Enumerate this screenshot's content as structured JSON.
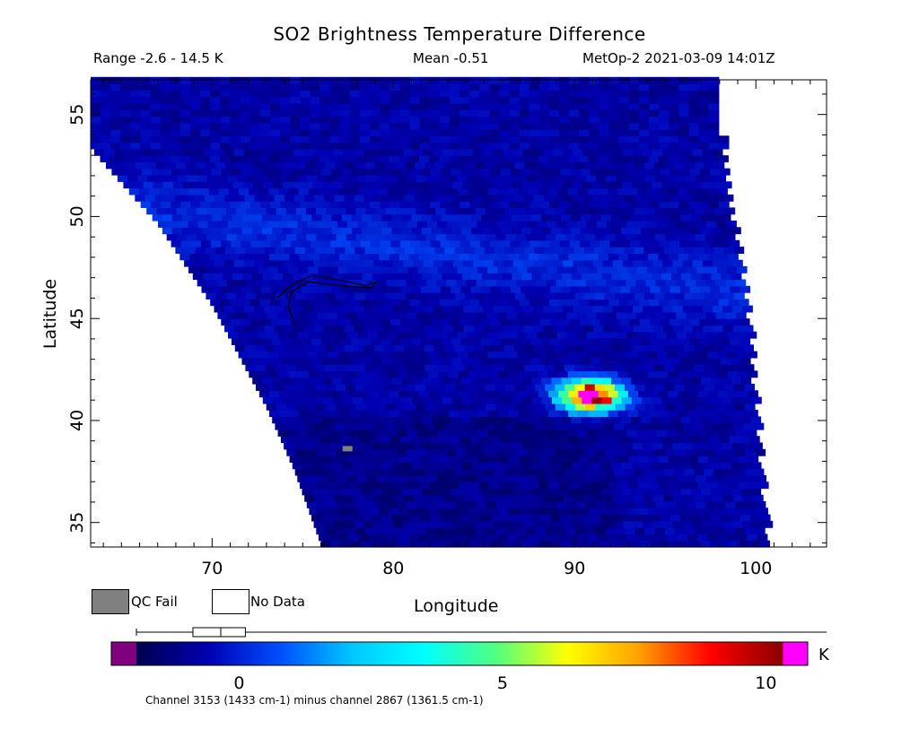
{
  "header": {
    "title": "SO2 Brightness Temperature Difference",
    "range": "Range -2.6 - 14.5 K",
    "mean": "Mean -0.51",
    "satellite_time": "MetOp-2 2021-03-09 14:01Z"
  },
  "legend": {
    "qc_fail": "QC Fail",
    "no_data": "No Data",
    "qc_fail_color": "#808080",
    "no_data_color": "#ffffff"
  },
  "colorbar": {
    "unit": "K",
    "footnote": "Channel 3153 (1433 cm-1) minus channel 2867 (1361.5 cm-1)",
    "ticks": [
      "0",
      "5",
      "10"
    ],
    "tick_values": [
      0,
      5,
      10
    ],
    "range": [
      -2.6,
      11.0
    ],
    "low_color": "#800080",
    "high_color": "#ff00ff",
    "stops": [
      "#000050",
      "#0000b4",
      "#0050ff",
      "#00c8ff",
      "#00ffff",
      "#50ff80",
      "#ffff00",
      "#ffa000",
      "#ff0000",
      "#8c0000"
    ],
    "boxplot": {
      "min": -2.6,
      "q1": -1.2,
      "median": -0.51,
      "q3": 0.1,
      "max": 14.5
    }
  },
  "chart_data": {
    "type": "heatmap",
    "title": "SO2 Brightness Temperature Difference",
    "xlabel": "Longitude",
    "ylabel": "Latitude",
    "xlim": [
      63.3,
      103.9
    ],
    "ylim": [
      33.8,
      56.7
    ],
    "xticks": [
      "70",
      "80",
      "90",
      "100"
    ],
    "xtick_values": [
      70,
      80,
      90,
      100
    ],
    "yticks": [
      "35",
      "40",
      "45",
      "50",
      "55"
    ],
    "ytick_values": [
      35,
      40,
      45,
      50,
      55
    ],
    "swath": {
      "left_edge": [
        [
          63.3,
          53.2
        ],
        [
          67,
          49.5
        ],
        [
          70,
          45.5
        ],
        [
          73,
          40.5
        ],
        [
          74.5,
          37.5
        ],
        [
          76,
          33.8
        ]
      ],
      "right_edge": [
        [
          97.5,
          56.7
        ],
        [
          98.5,
          50
        ],
        [
          99.5,
          44
        ],
        [
          100.5,
          33.8
        ]
      ],
      "top_lat": 56.7,
      "background_value": -0.8
    },
    "features": [
      {
        "name": "so2_plume",
        "lon": 90.6,
        "lat": 41.1,
        "peak_value": 14.5
      },
      {
        "name": "qc_fail_pixel",
        "lon": 77.2,
        "lat": 38.6
      }
    ],
    "lake_outline": [
      [
        73.6,
        46.0
      ],
      [
        74.5,
        46.7
      ],
      [
        75.5,
        47.1
      ],
      [
        77,
        46.9
      ],
      [
        78.5,
        46.6
      ],
      [
        79.1,
        46.8
      ],
      [
        78.8,
        46.5
      ],
      [
        77.2,
        46.6
      ],
      [
        75.3,
        46.8
      ],
      [
        74.4,
        46.3
      ],
      [
        74.2,
        45.6
      ],
      [
        74.5,
        44.9
      ]
    ]
  }
}
